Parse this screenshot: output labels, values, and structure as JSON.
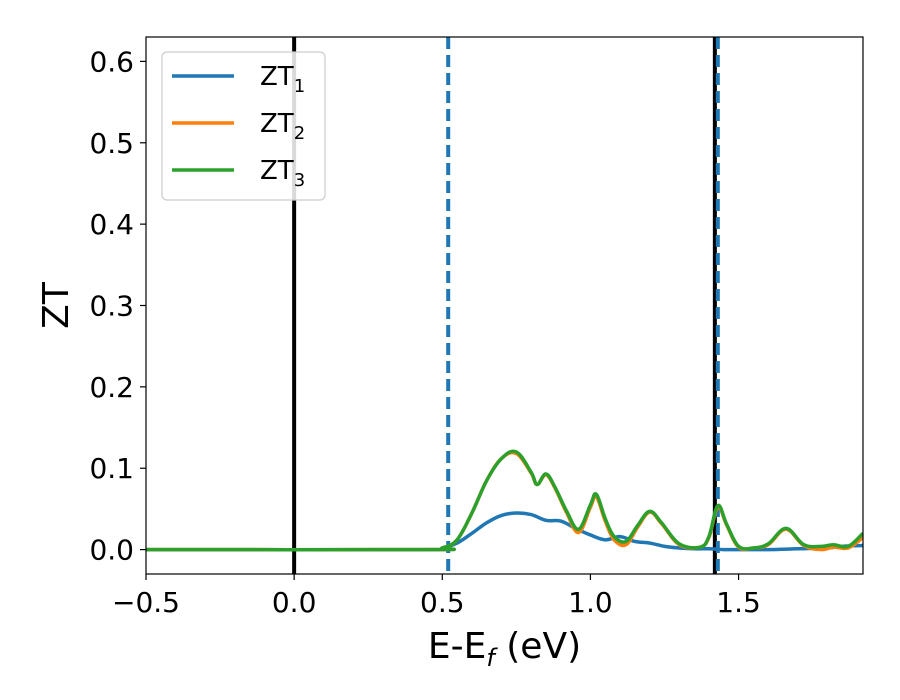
{
  "chart_data": {
    "type": "line",
    "xlabel": "E-E",
    "xlabel_sub": "f",
    "xlabel_unit": " (eV)",
    "ylabel": "ZT",
    "xlim": [
      -0.5,
      1.92
    ],
    "ylim": [
      -0.03,
      0.63
    ],
    "xticks": [
      -0.5,
      0.0,
      0.5,
      1.0,
      1.5
    ],
    "xtick_labels": [
      "−0.5",
      "0.0",
      "0.5",
      "1.0",
      "1.5"
    ],
    "yticks": [
      0.0,
      0.1,
      0.2,
      0.3,
      0.4,
      0.5,
      0.6
    ],
    "ytick_labels": [
      "0.0",
      "0.1",
      "0.2",
      "0.3",
      "0.4",
      "0.5",
      "0.6"
    ],
    "grid": false,
    "legend_position": "top-left",
    "vlines": [
      {
        "x": 0.0,
        "style": "solid",
        "color": "#000000"
      },
      {
        "x": 1.42,
        "style": "solid",
        "color": "#000000"
      },
      {
        "x": 0.52,
        "style": "dashed",
        "color": "#1f77b4"
      },
      {
        "x": 1.43,
        "style": "dashed",
        "color": "#1f77b4"
      }
    ],
    "series": [
      {
        "name": "ZT",
        "name_sub": "1",
        "color": "#1f77b4",
        "x": [
          -0.5,
          0.45,
          0.5,
          0.55,
          0.6,
          0.65,
          0.7,
          0.75,
          0.8,
          0.85,
          0.9,
          0.95,
          1.0,
          1.05,
          1.1,
          1.15,
          1.2,
          1.25,
          1.3,
          1.35,
          1.4,
          1.45,
          1.5,
          1.6,
          1.7,
          1.8,
          1.85,
          1.92
        ],
        "y": [
          0.0,
          0.0,
          0.002,
          0.008,
          0.02,
          0.033,
          0.042,
          0.045,
          0.043,
          0.036,
          0.035,
          0.026,
          0.018,
          0.012,
          0.016,
          0.01,
          0.008,
          0.004,
          0.002,
          0.001,
          0.001,
          0.0,
          0.0,
          0.0,
          0.001,
          0.002,
          0.004,
          0.005
        ]
      },
      {
        "name": "ZT",
        "name_sub": "2",
        "color": "#ff7f0e",
        "x": [
          -0.5,
          0.45,
          0.5,
          0.55,
          0.6,
          0.65,
          0.7,
          0.75,
          0.8,
          0.82,
          0.85,
          0.88,
          0.92,
          0.96,
          1.0,
          1.02,
          1.05,
          1.08,
          1.12,
          1.16,
          1.2,
          1.24,
          1.3,
          1.37,
          1.4,
          1.43,
          1.46,
          1.5,
          1.55,
          1.6,
          1.66,
          1.72,
          1.78,
          1.82,
          1.87,
          1.92
        ],
        "y": [
          0.0,
          0.0,
          0.002,
          0.012,
          0.045,
          0.085,
          0.112,
          0.118,
          0.094,
          0.08,
          0.092,
          0.076,
          0.045,
          0.021,
          0.052,
          0.065,
          0.035,
          0.012,
          0.006,
          0.028,
          0.046,
          0.032,
          0.006,
          0.003,
          0.015,
          0.052,
          0.03,
          0.003,
          0.002,
          0.006,
          0.025,
          0.005,
          0.0,
          0.003,
          0.002,
          0.015
        ]
      },
      {
        "name": "ZT",
        "name_sub": "3",
        "color": "#2ca02c",
        "x": [
          -0.5,
          0.45,
          0.5,
          0.55,
          0.6,
          0.65,
          0.7,
          0.75,
          0.8,
          0.82,
          0.85,
          0.88,
          0.92,
          0.96,
          1.0,
          1.02,
          1.05,
          1.08,
          1.12,
          1.16,
          1.2,
          1.24,
          1.3,
          1.37,
          1.4,
          1.43,
          1.46,
          1.5,
          1.55,
          1.6,
          1.66,
          1.72,
          1.78,
          1.82,
          1.87,
          1.92
        ],
        "y": [
          0.0,
          0.0,
          0.002,
          0.012,
          0.045,
          0.085,
          0.112,
          0.12,
          0.095,
          0.08,
          0.093,
          0.077,
          0.047,
          0.025,
          0.055,
          0.068,
          0.038,
          0.016,
          0.01,
          0.03,
          0.047,
          0.033,
          0.007,
          0.003,
          0.016,
          0.054,
          0.031,
          0.004,
          0.002,
          0.007,
          0.026,
          0.006,
          0.004,
          0.006,
          0.004,
          0.02
        ]
      }
    ]
  }
}
